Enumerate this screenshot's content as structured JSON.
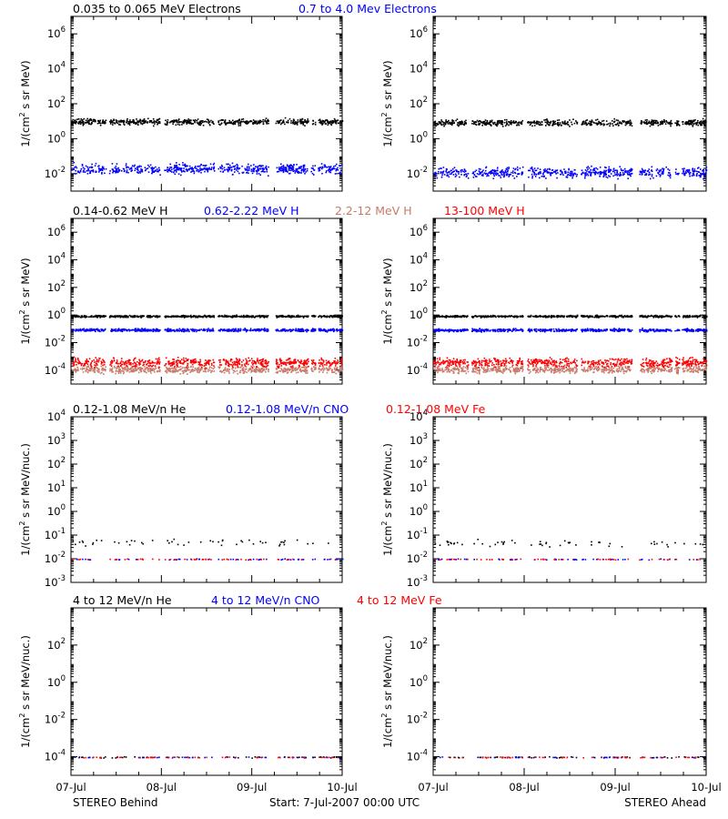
{
  "footer": {
    "left": "STEREO Behind",
    "center": "Start:  7-Jul-2007 00:00 UTC",
    "right": "STEREO Ahead"
  },
  "x_ticks": [
    "07-Jul",
    "08-Jul",
    "09-Jul",
    "10-Jul"
  ],
  "colors": {
    "black": "#000000",
    "blue": "#0000ff",
    "salmon": "#c87a6a",
    "red": "#ff0000"
  },
  "chart_data": [
    {
      "type": "scatter",
      "panel": "electrons",
      "title_segments": [
        {
          "text": "0.035 to 0.065 MeV Electrons",
          "color": "#000000"
        },
        {
          "text": "0.7 to 4.0 Mev Electrons",
          "color": "#0000ff"
        }
      ],
      "ylabel_main": "1/(cm",
      "ylabel_sup": "2",
      "ylabel_tail": " s sr MeV)",
      "y_scale": "log",
      "ylim_exp": [
        -3,
        7
      ],
      "y_ticks": [
        {
          "base": "10",
          "exp": "-2",
          "e": -2
        },
        {
          "base": "10",
          "exp": "0",
          "e": 0
        },
        {
          "base": "10",
          "exp": "2",
          "e": 2
        },
        {
          "base": "10",
          "exp": "4",
          "e": 4
        },
        {
          "base": "10",
          "exp": "6",
          "e": 6
        }
      ],
      "x_range_days": [
        0,
        3
      ],
      "gaps": [
        [
          0.38,
          0.42
        ],
        [
          0.98,
          1.03
        ],
        [
          1.58,
          1.62
        ],
        [
          2.18,
          2.26
        ],
        [
          2.62,
          2.65
        ],
        [
          2.7,
          2.73
        ]
      ],
      "series": [
        {
          "name": "0.035 to 0.065 MeV Electrons",
          "color": "#000000",
          "behind_log": 1.0,
          "ahead_log": 0.95,
          "spread": 0.17
        },
        {
          "name": "0.7 to 4.0 Mev Electrons",
          "color": "#0000ff",
          "behind_log": -1.7,
          "ahead_log": -1.9,
          "spread": 0.28
        }
      ]
    },
    {
      "type": "scatter",
      "panel": "protons",
      "title_segments": [
        {
          "text": "0.14-0.62 MeV H",
          "color": "#000000"
        },
        {
          "text": "0.62-2.22 MeV H",
          "color": "#0000ff"
        },
        {
          "text": "2.2-12 MeV H",
          "color": "#c87a6a"
        },
        {
          "text": "13-100 MeV H",
          "color": "#ff0000"
        }
      ],
      "ylabel_main": "1/(cm",
      "ylabel_sup": "2",
      "ylabel_tail": " s sr MeV)",
      "y_scale": "log",
      "ylim_exp": [
        -5,
        7
      ],
      "y_ticks": [
        {
          "base": "10",
          "exp": "-4",
          "e": -4
        },
        {
          "base": "10",
          "exp": "-2",
          "e": -2
        },
        {
          "base": "10",
          "exp": "0",
          "e": 0
        },
        {
          "base": "10",
          "exp": "2",
          "e": 2
        },
        {
          "base": "10",
          "exp": "4",
          "e": 4
        },
        {
          "base": "10",
          "exp": "6",
          "e": 6
        }
      ],
      "x_range_days": [
        0,
        3
      ],
      "gaps": [
        [
          0.38,
          0.42
        ],
        [
          0.98,
          1.03
        ],
        [
          1.58,
          1.62
        ],
        [
          2.18,
          2.26
        ],
        [
          2.62,
          2.65
        ],
        [
          2.7,
          2.73
        ]
      ],
      "series": [
        {
          "name": "0.14-0.62 MeV H",
          "color": "#000000",
          "behind_log": -0.05,
          "ahead_log": -0.05,
          "spread": 0.07
        },
        {
          "name": "0.62-2.22 MeV H",
          "color": "#0000ff",
          "behind_log": -1.05,
          "ahead_log": -1.05,
          "spread": 0.1
        },
        {
          "name": "2.2-12 MeV H",
          "color": "#c87a6a",
          "behind_log": -3.9,
          "ahead_log": -3.9,
          "spread": 0.25
        },
        {
          "name": "13-100 MeV H",
          "color": "#ff0000",
          "behind_log": -3.4,
          "ahead_log": -3.4,
          "spread": 0.3
        }
      ]
    },
    {
      "type": "scatter",
      "panel": "ions-low",
      "title_segments": [
        {
          "text": "0.12-1.08 MeV/n He",
          "color": "#000000"
        },
        {
          "text": "0.12-1.08 MeV/n CNO",
          "color": "#0000ff"
        },
        {
          "text": "0.12-1.08 MeV Fe",
          "color": "#ff0000"
        }
      ],
      "ylabel_main": "1/(cm",
      "ylabel_sup": "2",
      "ylabel_tail": " s sr MeV/nuc.)",
      "y_scale": "log",
      "ylim_exp": [
        -3,
        4
      ],
      "y_ticks": [
        {
          "base": "10",
          "exp": "-3",
          "e": -3
        },
        {
          "base": "10",
          "exp": "-2",
          "e": -2
        },
        {
          "base": "10",
          "exp": "-1",
          "e": -1
        },
        {
          "base": "10",
          "exp": "0",
          "e": 0
        },
        {
          "base": "10",
          "exp": "1",
          "e": 1
        },
        {
          "base": "10",
          "exp": "2",
          "e": 2
        },
        {
          "base": "10",
          "exp": "3",
          "e": 3
        },
        {
          "base": "10",
          "exp": "4",
          "e": 4
        }
      ],
      "x_range_days": [
        0,
        3
      ],
      "gaps": [
        [
          0.38,
          0.42
        ],
        [
          0.98,
          1.03
        ],
        [
          1.58,
          1.62
        ],
        [
          2.18,
          2.26
        ],
        [
          2.62,
          2.65
        ],
        [
          2.7,
          2.73
        ]
      ],
      "series": [
        {
          "name": "0.12-1.08 MeV/n He",
          "color": "#000000",
          "behind_log": -1.3,
          "ahead_log": -1.3,
          "spread": 0.15
        },
        {
          "name": "0.12-1.08 MeV/n CNO",
          "color": "#0000ff",
          "behind_log": -2.0,
          "ahead_log": -2.0,
          "spread": 0.02
        },
        {
          "name": "0.12-1.08 MeV Fe",
          "color": "#ff0000",
          "behind_log": -2.0,
          "ahead_log": -2.0,
          "spread": 0.02
        }
      ]
    },
    {
      "type": "scatter",
      "panel": "ions-high",
      "title_segments": [
        {
          "text": "4 to 12 MeV/n He",
          "color": "#000000"
        },
        {
          "text": "4 to 12 MeV/n CNO",
          "color": "#0000ff"
        },
        {
          "text": "4 to 12 MeV Fe",
          "color": "#ff0000"
        }
      ],
      "ylabel_main": "1/(cm",
      "ylabel_sup": "2",
      "ylabel_tail": " s sr MeV/nuc.)",
      "y_scale": "log",
      "ylim_exp": [
        -5,
        4
      ],
      "y_ticks": [
        {
          "base": "10",
          "exp": "-4",
          "e": -4
        },
        {
          "base": "10",
          "exp": "-2",
          "e": -2
        },
        {
          "base": "10",
          "exp": "0",
          "e": 0
        },
        {
          "base": "10",
          "exp": "2",
          "e": 2
        }
      ],
      "x_range_days": [
        0,
        3
      ],
      "gaps": [
        [
          0.38,
          0.42
        ],
        [
          0.98,
          1.03
        ],
        [
          1.58,
          1.62
        ],
        [
          2.18,
          2.26
        ],
        [
          2.62,
          2.65
        ],
        [
          2.7,
          2.73
        ]
      ],
      "series": [
        {
          "name": "4 to 12 MeV/n He",
          "color": "#000000",
          "behind_log": -4.0,
          "ahead_log": -4.0,
          "spread": 0.03
        },
        {
          "name": "4 to 12 MeV/n CNO",
          "color": "#0000ff",
          "behind_log": -4.0,
          "ahead_log": -4.0,
          "spread": 0.02
        },
        {
          "name": "4 to 12 MeV Fe",
          "color": "#ff0000",
          "behind_log": -4.0,
          "ahead_log": -4.0,
          "spread": 0.02
        }
      ]
    }
  ]
}
